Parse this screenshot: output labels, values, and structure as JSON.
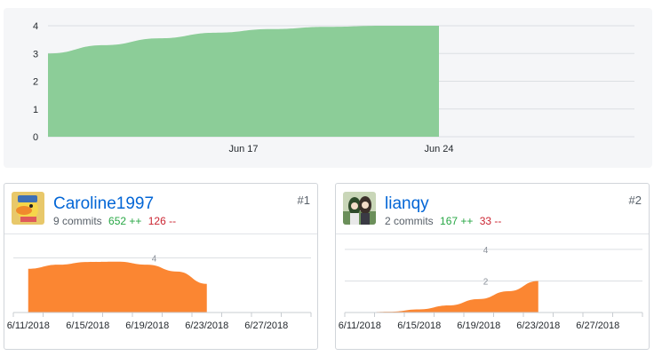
{
  "colors": {
    "main_area": "#8ccd98",
    "contrib_area": "#fb8632",
    "grid": "#dcdfe3",
    "link": "#0366d6",
    "additions": "#28a745",
    "deletions": "#cb2431"
  },
  "main_chart": {
    "chart_data": {
      "type": "area",
      "y_ticks": [
        "4",
        "3",
        "2",
        "1",
        "0"
      ],
      "ylim": [
        0,
        4
      ],
      "x_tick_labels": [
        "Jun 17",
        "Jun 24"
      ],
      "x_range": [
        "2018-06-10",
        "2018-07-01"
      ],
      "series": [
        {
          "x": [
            "2018-06-10",
            "2018-06-12",
            "2018-06-14",
            "2018-06-16",
            "2018-06-18",
            "2018-06-20",
            "2018-06-22",
            "2018-06-24"
          ],
          "y": [
            3.0,
            3.3,
            3.55,
            3.75,
            3.88,
            3.96,
            4.0,
            4.0
          ]
        }
      ]
    }
  },
  "contributors": [
    {
      "username": "Caroline1997",
      "commits": "9 commits",
      "additions": "652 ++",
      "deletions": "126 --",
      "rank": "#1",
      "avatar_icon": "duck-avatar-icon",
      "chart_data": {
        "type": "area",
        "y_ticks": [
          "4"
        ],
        "ylim": [
          0,
          5.2
        ],
        "x_tick_labels": [
          "6/11/2018",
          "6/15/2018",
          "6/19/2018",
          "6/23/2018",
          "6/27/2018"
        ],
        "x_range": [
          "2018-06-10",
          "2018-06-30"
        ],
        "series": [
          {
            "x": [
              "2018-06-11",
              "2018-06-13",
              "2018-06-15",
              "2018-06-17",
              "2018-06-19",
              "2018-06-21",
              "2018-06-23"
            ],
            "y": [
              3.2,
              3.5,
              3.7,
              3.72,
              3.5,
              3.0,
              2.1
            ]
          }
        ]
      }
    },
    {
      "username": "lianqy",
      "commits": "2 commits",
      "additions": "167 ++",
      "deletions": "33 --",
      "rank": "#2",
      "avatar_icon": "anime-avatar-icon",
      "chart_data": {
        "type": "area",
        "y_ticks": [
          "4",
          "2"
        ],
        "ylim": [
          0,
          4.5
        ],
        "x_tick_labels": [
          "6/11/2018",
          "6/15/2018",
          "6/19/2018",
          "6/23/2018",
          "6/27/2018"
        ],
        "x_range": [
          "2018-06-10",
          "2018-06-30"
        ],
        "series": [
          {
            "x": [
              "2018-06-11",
              "2018-06-13",
              "2018-06-15",
              "2018-06-17",
              "2018-06-19",
              "2018-06-21",
              "2018-06-23"
            ],
            "y": [
              0.0,
              0.05,
              0.2,
              0.45,
              0.85,
              1.35,
              2.0
            ]
          }
        ]
      }
    }
  ]
}
